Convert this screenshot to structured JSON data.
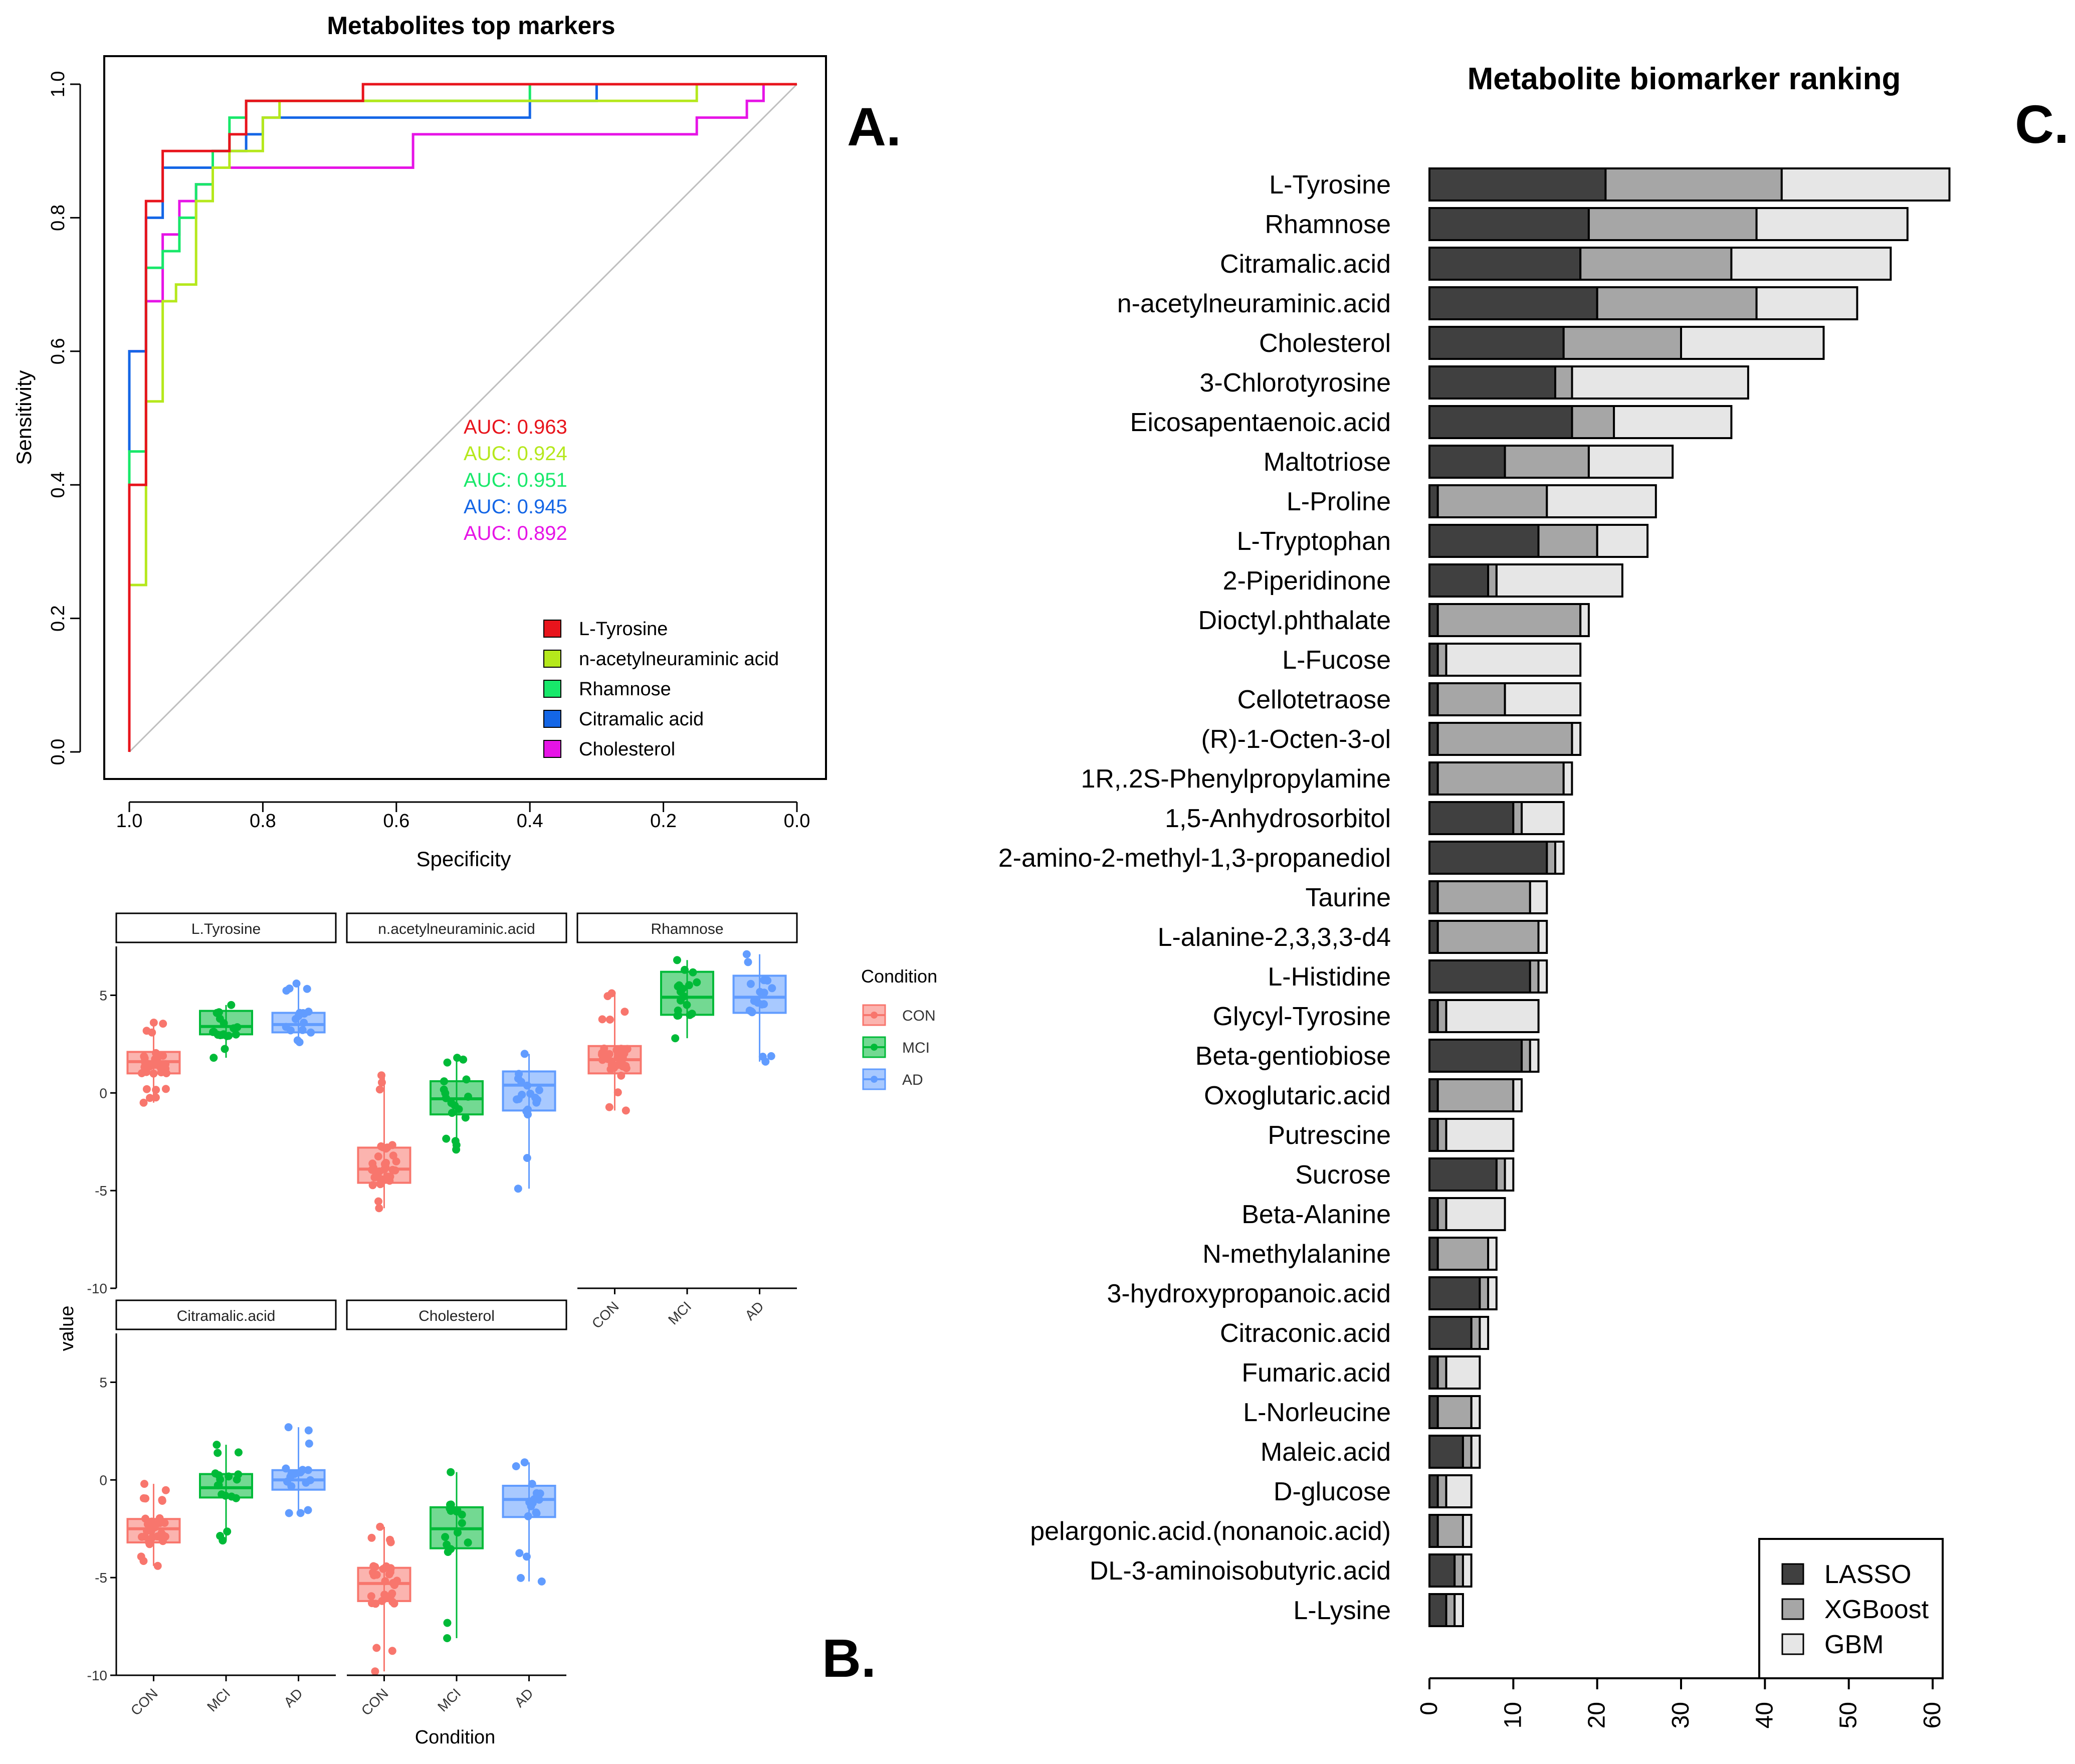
{
  "panels": {
    "a": "A.",
    "b": "B.",
    "c": "C."
  },
  "chart_data": [
    {
      "type": "line",
      "subtype": "roc",
      "title": "Metabolites top markers",
      "xlabel": "Specificity",
      "ylabel": "Sensitivity",
      "xlim": [
        1.0,
        0.0
      ],
      "ylim": [
        0.0,
        1.0
      ],
      "xticks": [
        "1.0",
        "0.8",
        "0.6",
        "0.4",
        "0.2",
        "0.0"
      ],
      "yticks": [
        "0.0",
        "0.2",
        "0.4",
        "0.6",
        "0.8",
        "1.0"
      ],
      "legend_position": "bottom-right",
      "series": [
        {
          "name": "L-Tyrosine",
          "auc_label": "AUC: 0.963",
          "color": "#e8141c",
          "points": [
            [
              1.0,
              0.0
            ],
            [
              1.0,
              0.4
            ],
            [
              0.975,
              0.4
            ],
            [
              0.975,
              0.825
            ],
            [
              0.95,
              0.825
            ],
            [
              0.95,
              0.9
            ],
            [
              0.85,
              0.9
            ],
            [
              0.85,
              0.925
            ],
            [
              0.825,
              0.925
            ],
            [
              0.825,
              0.975
            ],
            [
              0.65,
              0.975
            ],
            [
              0.65,
              1.0
            ],
            [
              0.0,
              1.0
            ]
          ]
        },
        {
          "name": "n-acetylneuraminic acid",
          "auc_label": "AUC: 0.924",
          "color": "#b5e81c",
          "points": [
            [
              1.0,
              0.0
            ],
            [
              1.0,
              0.25
            ],
            [
              0.975,
              0.25
            ],
            [
              0.975,
              0.525
            ],
            [
              0.95,
              0.525
            ],
            [
              0.95,
              0.675
            ],
            [
              0.93,
              0.675
            ],
            [
              0.93,
              0.7
            ],
            [
              0.9,
              0.7
            ],
            [
              0.9,
              0.825
            ],
            [
              0.875,
              0.825
            ],
            [
              0.875,
              0.875
            ],
            [
              0.85,
              0.875
            ],
            [
              0.85,
              0.9
            ],
            [
              0.8,
              0.9
            ],
            [
              0.8,
              0.95
            ],
            [
              0.775,
              0.95
            ],
            [
              0.775,
              0.975
            ],
            [
              0.15,
              0.975
            ],
            [
              0.15,
              1.0
            ],
            [
              0.0,
              1.0
            ]
          ]
        },
        {
          "name": "Rhamnose",
          "auc_label": "AUC: 0.951",
          "color": "#18e86a",
          "points": [
            [
              1.0,
              0.0
            ],
            [
              1.0,
              0.45
            ],
            [
              0.975,
              0.45
            ],
            [
              0.975,
              0.725
            ],
            [
              0.95,
              0.725
            ],
            [
              0.95,
              0.75
            ],
            [
              0.925,
              0.75
            ],
            [
              0.925,
              0.8
            ],
            [
              0.9,
              0.8
            ],
            [
              0.9,
              0.85
            ],
            [
              0.875,
              0.85
            ],
            [
              0.875,
              0.9
            ],
            [
              0.85,
              0.9
            ],
            [
              0.85,
              0.95
            ],
            [
              0.825,
              0.95
            ],
            [
              0.825,
              0.975
            ],
            [
              0.4,
              0.975
            ],
            [
              0.4,
              1.0
            ],
            [
              0.0,
              1.0
            ]
          ]
        },
        {
          "name": "Citramalic acid",
          "auc_label": "AUC: 0.945",
          "color": "#1466e6",
          "points": [
            [
              1.0,
              0.0
            ],
            [
              1.0,
              0.6
            ],
            [
              0.975,
              0.6
            ],
            [
              0.975,
              0.8
            ],
            [
              0.95,
              0.8
            ],
            [
              0.95,
              0.875
            ],
            [
              0.875,
              0.875
            ],
            [
              0.875,
              0.9
            ],
            [
              0.825,
              0.9
            ],
            [
              0.825,
              0.925
            ],
            [
              0.8,
              0.925
            ],
            [
              0.8,
              0.95
            ],
            [
              0.4,
              0.95
            ],
            [
              0.4,
              0.975
            ],
            [
              0.3,
              0.975
            ],
            [
              0.3,
              1.0
            ],
            [
              0.0,
              1.0
            ]
          ]
        },
        {
          "name": "Cholesterol",
          "auc_label": "AUC: 0.892",
          "color": "#e614e6",
          "points": [
            [
              1.0,
              0.0
            ],
            [
              1.0,
              0.6
            ],
            [
              0.975,
              0.6
            ],
            [
              0.975,
              0.675
            ],
            [
              0.95,
              0.675
            ],
            [
              0.95,
              0.775
            ],
            [
              0.925,
              0.775
            ],
            [
              0.925,
              0.825
            ],
            [
              0.9,
              0.825
            ],
            [
              0.9,
              0.85
            ],
            [
              0.875,
              0.85
            ],
            [
              0.875,
              0.875
            ],
            [
              0.775,
              0.875
            ],
            [
              0.775,
              0.875
            ],
            [
              0.575,
              0.875
            ],
            [
              0.575,
              0.925
            ],
            [
              0.15,
              0.925
            ],
            [
              0.15,
              0.95
            ],
            [
              0.075,
              0.95
            ],
            [
              0.075,
              0.975
            ],
            [
              0.05,
              0.975
            ],
            [
              0.05,
              1.0
            ],
            [
              0.0,
              1.0
            ]
          ]
        }
      ]
    },
    {
      "type": "boxplot",
      "xlabel": "Condition",
      "ylabel": "value",
      "ylim": [
        -10,
        7.5
      ],
      "yticks": [
        "-10",
        "-5",
        "0",
        "5"
      ],
      "yticks_values": [
        -10,
        -5,
        0,
        5
      ],
      "categories": [
        "CON",
        "MCI",
        "AD"
      ],
      "legend_title": "Condition",
      "legend_position": "right",
      "group_colors": {
        "CON": "#f8766d",
        "MCI": "#00ba38",
        "AD": "#619cff"
      },
      "facets": [
        {
          "name": "L.Tyrosine",
          "boxes": [
            {
              "group": "CON",
              "q1": 1.0,
              "median": 1.6,
              "q3": 2.1,
              "lo": -0.5,
              "hi": 3.6
            },
            {
              "group": "MCI",
              "q1": 3.0,
              "median": 3.4,
              "q3": 4.2,
              "lo": 1.8,
              "hi": 4.5
            },
            {
              "group": "AD",
              "q1": 3.1,
              "median": 3.5,
              "q3": 4.1,
              "lo": 2.6,
              "hi": 5.6
            }
          ]
        },
        {
          "name": "n.acetylneuraminic.acid",
          "boxes": [
            {
              "group": "CON",
              "q1": -4.6,
              "median": -3.9,
              "q3": -2.8,
              "lo": -5.9,
              "hi": 0.9
            },
            {
              "group": "MCI",
              "q1": -1.1,
              "median": -0.3,
              "q3": 0.6,
              "lo": -2.9,
              "hi": 1.8
            },
            {
              "group": "AD",
              "q1": -0.9,
              "median": 0.4,
              "q3": 1.1,
              "lo": -4.9,
              "hi": 2.0
            }
          ]
        },
        {
          "name": "Rhamnose",
          "boxes": [
            {
              "group": "CON",
              "q1": 1.0,
              "median": 1.7,
              "q3": 2.4,
              "lo": -0.9,
              "hi": 5.1
            },
            {
              "group": "MCI",
              "q1": 4.0,
              "median": 4.9,
              "q3": 6.2,
              "lo": 2.8,
              "hi": 6.8
            },
            {
              "group": "AD",
              "q1": 4.1,
              "median": 4.9,
              "q3": 6.0,
              "lo": 1.6,
              "hi": 7.1
            }
          ]
        },
        {
          "name": "Citramalic.acid",
          "boxes": [
            {
              "group": "CON",
              "q1": -3.2,
              "median": -2.5,
              "q3": -2.0,
              "lo": -4.4,
              "hi": -0.2
            },
            {
              "group": "MCI",
              "q1": -0.9,
              "median": -0.4,
              "q3": 0.3,
              "lo": -3.1,
              "hi": 1.8
            },
            {
              "group": "AD",
              "q1": -0.5,
              "median": 0.0,
              "q3": 0.5,
              "lo": -1.7,
              "hi": 2.7
            }
          ]
        },
        {
          "name": "Cholesterol",
          "boxes": [
            {
              "group": "CON",
              "q1": -6.2,
              "median": -5.3,
              "q3": -4.5,
              "lo": -9.8,
              "hi": -2.4
            },
            {
              "group": "MCI",
              "q1": -3.5,
              "median": -2.5,
              "q3": -1.4,
              "lo": -8.1,
              "hi": 0.4
            },
            {
              "group": "AD",
              "q1": -1.9,
              "median": -1.0,
              "q3": -0.3,
              "lo": -5.2,
              "hi": 0.9
            }
          ]
        }
      ]
    },
    {
      "type": "bar",
      "subtype": "horizontal-stacked",
      "title": "Metabolite biomarker ranking",
      "xlim": [
        0,
        62
      ],
      "xticks": [
        "0",
        "10",
        "20",
        "30",
        "40",
        "50",
        "60"
      ],
      "xticks_values": [
        0,
        10,
        20,
        30,
        40,
        50,
        60
      ],
      "legend_position": "bottom-right",
      "series_names": [
        "LASSO",
        "XGBoost",
        "GBM"
      ],
      "series_colors": [
        "#404040",
        "#a6a6a6",
        "#e6e6e6"
      ],
      "categories": [
        "L-Tyrosine",
        "Rhamnose",
        "Citramalic.acid",
        "n-acetylneuraminic.acid",
        "Cholesterol",
        "3-Chlorotyrosine",
        "Eicosapentaenoic.acid",
        "Maltotriose",
        "L-Proline",
        "L-Tryptophan",
        "2-Piperidinone",
        "Dioctyl.phthalate",
        "L-Fucose",
        "Cellotetraose",
        "(R)-1-Octen-3-ol",
        "1R,.2S-Phenylpropylamine",
        "1,5-Anhydrosorbitol",
        "2-amino-2-methyl-1,3-propanediol",
        "Taurine",
        "L-alanine-2,3,3,3-d4",
        "L-Histidine",
        "Glycyl-Tyrosine",
        "Beta-gentiobiose",
        "Oxoglutaric.acid",
        "Putrescine",
        "Sucrose",
        "Beta-Alanine",
        "N-methylalanine",
        "3-hydroxypropanoic.acid",
        "Citraconic.acid",
        "Fumaric.acid",
        "L-Norleucine",
        "Maleic.acid",
        "D-glucose",
        "pelargonic.acid.(nonanoic.acid)",
        "DL-3-aminoisobutyric.acid",
        "L-Lysine"
      ],
      "series": [
        {
          "name": "LASSO",
          "values": [
            21,
            19,
            18,
            20,
            16,
            15,
            17,
            9,
            1,
            13,
            7,
            1,
            1,
            1,
            1,
            1,
            10,
            14,
            1,
            1,
            12,
            1,
            11,
            1,
            1,
            8,
            1,
            1,
            6,
            5,
            1,
            1,
            4,
            1,
            1,
            3,
            2
          ]
        },
        {
          "name": "XGBoost",
          "values": [
            21,
            20,
            18,
            19,
            14,
            2,
            5,
            10,
            13,
            7,
            1,
            17,
            1,
            8,
            16,
            15,
            1,
            1,
            11,
            12,
            1,
            1,
            1,
            9,
            1,
            1,
            1,
            6,
            1,
            1,
            1,
            4,
            1,
            1,
            3,
            1,
            1
          ]
        },
        {
          "name": "GBM",
          "values": [
            20,
            18,
            19,
            12,
            17,
            21,
            14,
            10,
            13,
            6,
            15,
            1,
            16,
            9,
            1,
            1,
            5,
            1,
            2,
            1,
            1,
            11,
            1,
            1,
            8,
            1,
            7,
            1,
            1,
            1,
            4,
            1,
            1,
            3,
            1,
            1,
            1
          ]
        }
      ]
    }
  ]
}
